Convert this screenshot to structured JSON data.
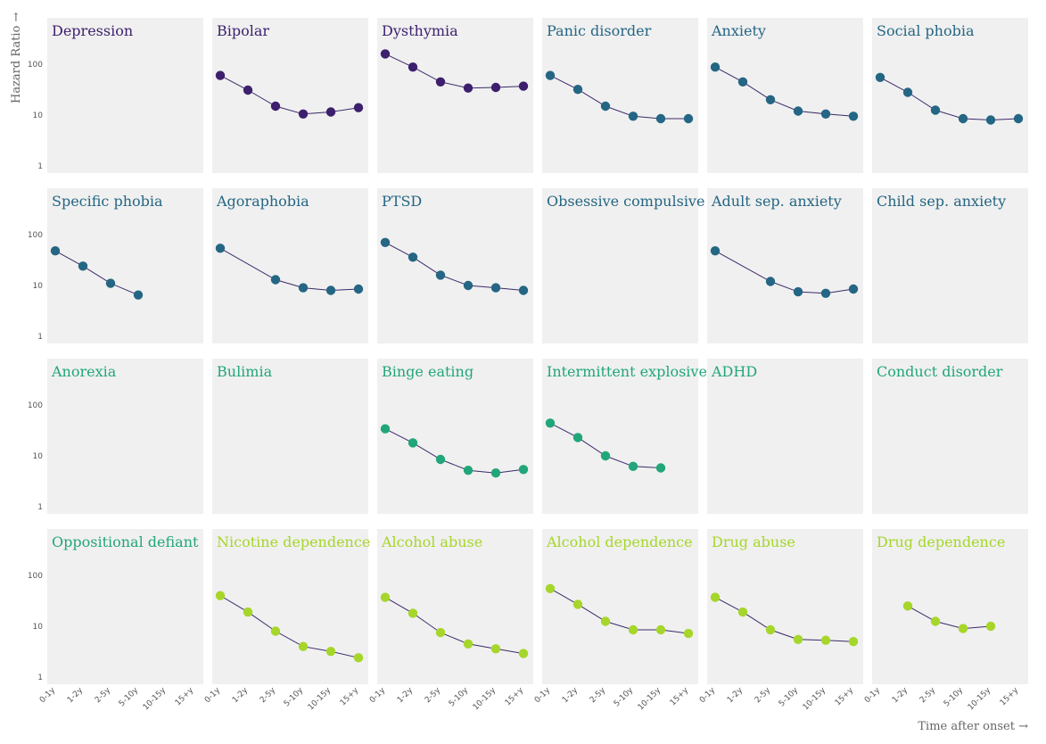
{
  "chart_data": {
    "type": "scatter",
    "title": "",
    "ylabel": "Hazard Ratio →",
    "xlabel": "Time after onset →",
    "yscale": "log",
    "ylim": [
      0.8,
      300
    ],
    "yticks": [
      "1",
      "10",
      "100"
    ],
    "ytick_values": [
      1,
      10,
      100
    ],
    "categories": [
      "0-1y",
      "1-2y",
      "2-5y",
      "5-10y",
      "10-15y",
      "15+y"
    ],
    "grid": false,
    "panels": [
      {
        "name": "Depression",
        "color": "#3d1f6e",
        "values": [
          null,
          null,
          null,
          null,
          null,
          null
        ]
      },
      {
        "name": "Bipolar",
        "color": "#3d1f6e",
        "values": [
          60,
          31,
          15,
          10.5,
          11.5,
          14
        ]
      },
      {
        "name": "Dysthymia",
        "color": "#3d1f6e",
        "values": [
          160,
          88,
          45,
          34,
          35,
          37
        ]
      },
      {
        "name": "Panic disorder",
        "color": "#246683",
        "values": [
          60,
          32,
          15,
          9.5,
          8.5,
          8.5
        ]
      },
      {
        "name": "Anxiety",
        "color": "#246683",
        "values": [
          88,
          45,
          20,
          12,
          10.5,
          9.5
        ]
      },
      {
        "name": "Social phobia",
        "color": "#246683",
        "values": [
          55,
          28,
          12.5,
          8.5,
          8,
          8.5
        ]
      },
      {
        "name": "Specific phobia",
        "color": "#246683",
        "values": [
          48,
          24,
          11,
          6.5,
          null,
          null
        ]
      },
      {
        "name": "Agoraphobia",
        "color": "#246683",
        "values": [
          54,
          null,
          13,
          9,
          8,
          8.5
        ]
      },
      {
        "name": "PTSD",
        "color": "#246683",
        "values": [
          70,
          36,
          16,
          10,
          9,
          8
        ]
      },
      {
        "name": "Obsessive compulsive",
        "color": "#246683",
        "values": [
          null,
          null,
          null,
          null,
          null,
          null
        ]
      },
      {
        "name": "Adult sep. anxiety",
        "color": "#246683",
        "values": [
          48,
          null,
          12,
          7.5,
          7,
          8.5
        ]
      },
      {
        "name": "Child sep. anxiety",
        "color": "#246683",
        "values": [
          null,
          null,
          null,
          null,
          null,
          null
        ]
      },
      {
        "name": "Anorexia",
        "color": "#21a679",
        "values": [
          null,
          null,
          null,
          null,
          null,
          null
        ]
      },
      {
        "name": "Bulimia",
        "color": "#21a679",
        "values": [
          null,
          null,
          null,
          null,
          null,
          null
        ]
      },
      {
        "name": "Binge eating",
        "color": "#21a679",
        "values": [
          34,
          18,
          8.5,
          5.2,
          4.6,
          5.4
        ]
      },
      {
        "name": "Intermittent explosive",
        "color": "#21a679",
        "values": [
          44,
          23,
          10,
          6.2,
          5.8,
          null
        ]
      },
      {
        "name": "ADHD",
        "color": "#21a679",
        "values": [
          null,
          null,
          null,
          null,
          null,
          null
        ]
      },
      {
        "name": "Conduct disorder",
        "color": "#21a679",
        "values": [
          null,
          null,
          null,
          null,
          null,
          null
        ]
      },
      {
        "name": "Oppositional defiant",
        "color": "#21a679",
        "values": [
          null,
          null,
          null,
          null,
          null,
          null
        ]
      },
      {
        "name": "Nicotine dependence",
        "color": "#a6d62a",
        "values": [
          40,
          19,
          8,
          4,
          3.2,
          2.4
        ]
      },
      {
        "name": "Alcohol abuse",
        "color": "#a6d62a",
        "values": [
          37,
          18,
          7.5,
          4.5,
          3.6,
          2.9
        ]
      },
      {
        "name": "Alcohol dependence",
        "color": "#a6d62a",
        "values": [
          55,
          27,
          12.5,
          8.5,
          8.5,
          7.2
        ]
      },
      {
        "name": "Drug abuse",
        "color": "#a6d62a",
        "values": [
          37,
          19,
          8.5,
          5.5,
          5.3,
          5
        ]
      },
      {
        "name": "Drug dependence",
        "color": "#a6d62a",
        "values": [
          null,
          25,
          12.5,
          9,
          10,
          null
        ]
      }
    ]
  }
}
